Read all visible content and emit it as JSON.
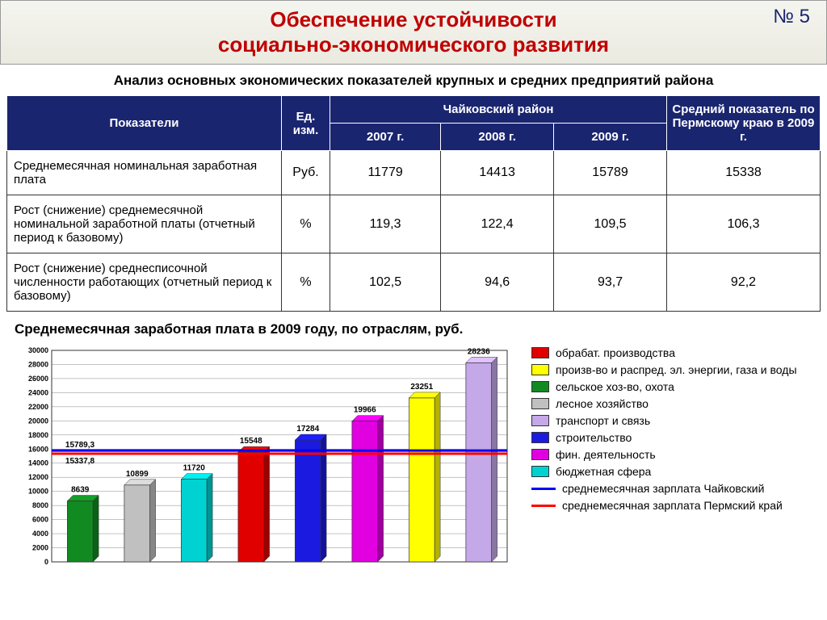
{
  "slide_number": "№ 5",
  "title_line1": "Обеспечение устойчивости",
  "title_line2": "социально-экономического   развития",
  "subtitle": "Анализ основных экономических показателей крупных и средних предприятий района",
  "table": {
    "header_indicators": "Показатели",
    "header_unit": "Ед. изм.",
    "header_region": "Чайковский район",
    "header_y1": "2007 г.",
    "header_y2": "2008 г.",
    "header_y3": "2009 г.",
    "header_avg": "Средний показатель по Пермскому краю в 2009 г.",
    "rows": [
      {
        "label": "Среднемесячная номинальная заработная плата",
        "unit": "Руб.",
        "v1": "11779",
        "v2": "14413",
        "v3": "15789",
        "avg": "15338"
      },
      {
        "label": "Рост (снижение) среднемесячной номинальной заработной платы (отчетный период к базовому)",
        "unit": "%",
        "v1": "119,3",
        "v2": "122,4",
        "v3": "109,5",
        "avg": "106,3"
      },
      {
        "label": "Рост (снижение) среднесписочной численности работающих (отчетный период к базовому)",
        "unit": "%",
        "v1": "102,5",
        "v2": "94,6",
        "v3": "93,7",
        "avg": "92,2"
      }
    ]
  },
  "chart": {
    "title": "Среднемесячная  заработная плата в 2009 году, по отраслям, руб.",
    "ymin": 0,
    "ymax": 30000,
    "ystep": 2000,
    "bars": [
      {
        "value": 8639,
        "color": "#118a22",
        "label": "8639"
      },
      {
        "value": 10899,
        "color": "#c0c0c0",
        "label": "10899"
      },
      {
        "value": 11720,
        "color": "#00d2d2",
        "label": "11720"
      },
      {
        "value": 15548,
        "color": "#e00000",
        "label": "15548"
      },
      {
        "value": 17284,
        "color": "#1a1ae0",
        "label": "17284"
      },
      {
        "value": 19966,
        "color": "#e000e0",
        "label": "19966"
      },
      {
        "value": 23251,
        "color": "#ffff00",
        "label": "23251"
      },
      {
        "value": 28236,
        "color": "#c4a8e8",
        "label": "28236"
      }
    ],
    "ref_lines": [
      {
        "value": 15789.3,
        "color": "#0000ff",
        "label": "15789,3"
      },
      {
        "value": 15337.8,
        "color": "#ff0000",
        "label": "15337,8"
      }
    ],
    "legend": [
      {
        "type": "swatch",
        "color": "#e00000",
        "label": "обрабат. производства"
      },
      {
        "type": "swatch",
        "color": "#ffff00",
        "label": "произв-во и распред. эл. энергии, газа и воды"
      },
      {
        "type": "swatch",
        "color": "#118a22",
        "label": "сельское хоз-во, охота"
      },
      {
        "type": "swatch",
        "color": "#c0c0c0",
        "label": "лесное хозяйство"
      },
      {
        "type": "swatch",
        "color": "#c4a8e8",
        "label": "транспорт и связь"
      },
      {
        "type": "swatch",
        "color": "#1a1ae0",
        "label": "строительство"
      },
      {
        "type": "swatch",
        "color": "#e000e0",
        "label": "фин. деятельность"
      },
      {
        "type": "swatch",
        "color": "#00d2d2",
        "label": "бюджетная сфера"
      },
      {
        "type": "line",
        "color": "#0000ff",
        "label": "среднемесячная зарплата Чайковский"
      },
      {
        "type": "line",
        "color": "#ff0000",
        "label": "среднемесячная зарплата Пермский край"
      }
    ]
  }
}
